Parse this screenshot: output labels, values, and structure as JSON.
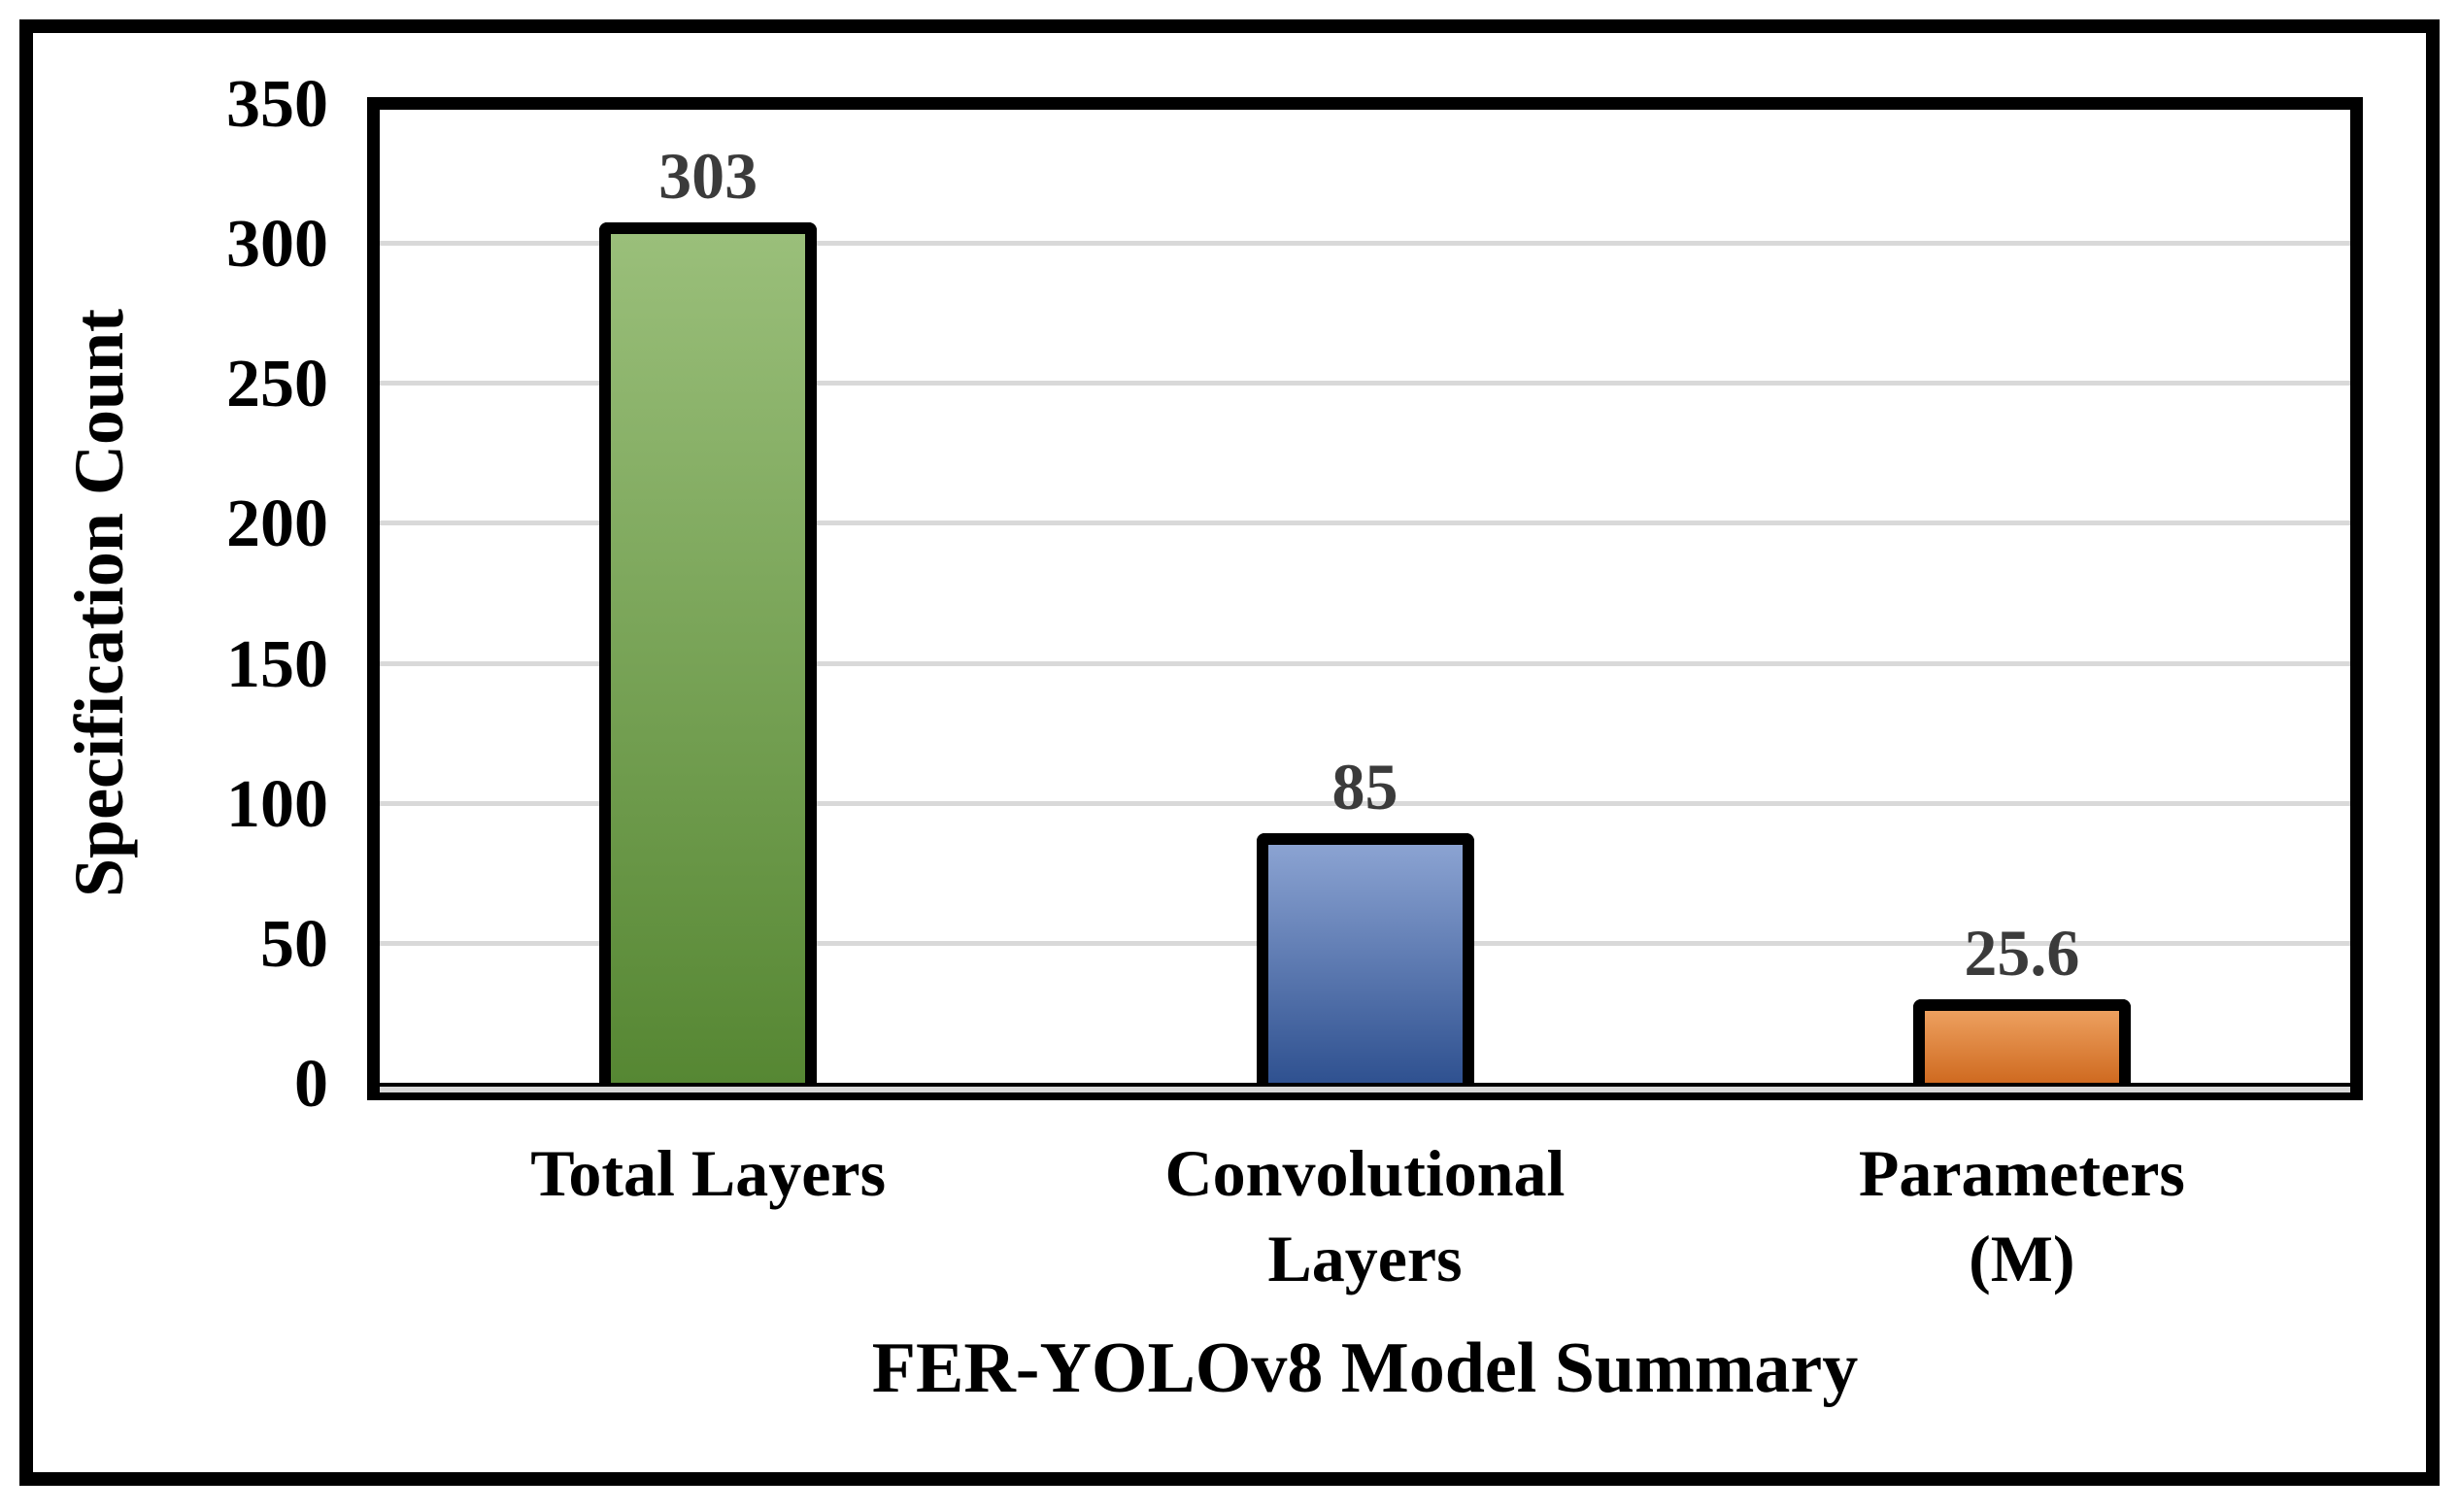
{
  "chart_data": {
    "type": "bar",
    "title": "",
    "categories": [
      "Total Layers",
      "Convolutional Layers",
      "Parameters (M)"
    ],
    "category_lines": [
      [
        "Total Layers"
      ],
      [
        "Convolutional",
        "Layers"
      ],
      [
        "Parameters (M)"
      ]
    ],
    "values": [
      303,
      85,
      25.6
    ],
    "value_labels": [
      "303",
      "85",
      "25.6"
    ],
    "xlabel": "FER-YOLOv8 Model Summary",
    "ylabel": "Specification Count",
    "ylim": [
      0,
      350
    ],
    "yticks": [
      0,
      50,
      100,
      150,
      200,
      250,
      300,
      350
    ],
    "ytick_labels": [
      "0",
      "50",
      "100",
      "150",
      "200",
      "250",
      "300",
      "350"
    ],
    "grid": "horizontal",
    "legend": "none",
    "bar_style": "vertical gradient fill with thick black outline",
    "series": [
      {
        "name": "Total Layers",
        "value": 303,
        "color_top": "#9ABF7A",
        "color_bottom": "#568733"
      },
      {
        "name": "Convolutional Layers",
        "value": 85,
        "color_top": "#8BA3D2",
        "color_bottom": "#2F5190"
      },
      {
        "name": "Parameters (M)",
        "value": 25.6,
        "color_top": "#EDA05F",
        "color_bottom": "#CF6A20"
      }
    ]
  },
  "colors": {
    "background": "#FFFFFF",
    "frame_border": "#000000",
    "plot_border": "#000000",
    "gridline": "#D9D9D9",
    "axis_line": "#000000",
    "tick_text": "#000000",
    "value_label_text": "#3B3B3B",
    "bar_outline": "#000000"
  }
}
